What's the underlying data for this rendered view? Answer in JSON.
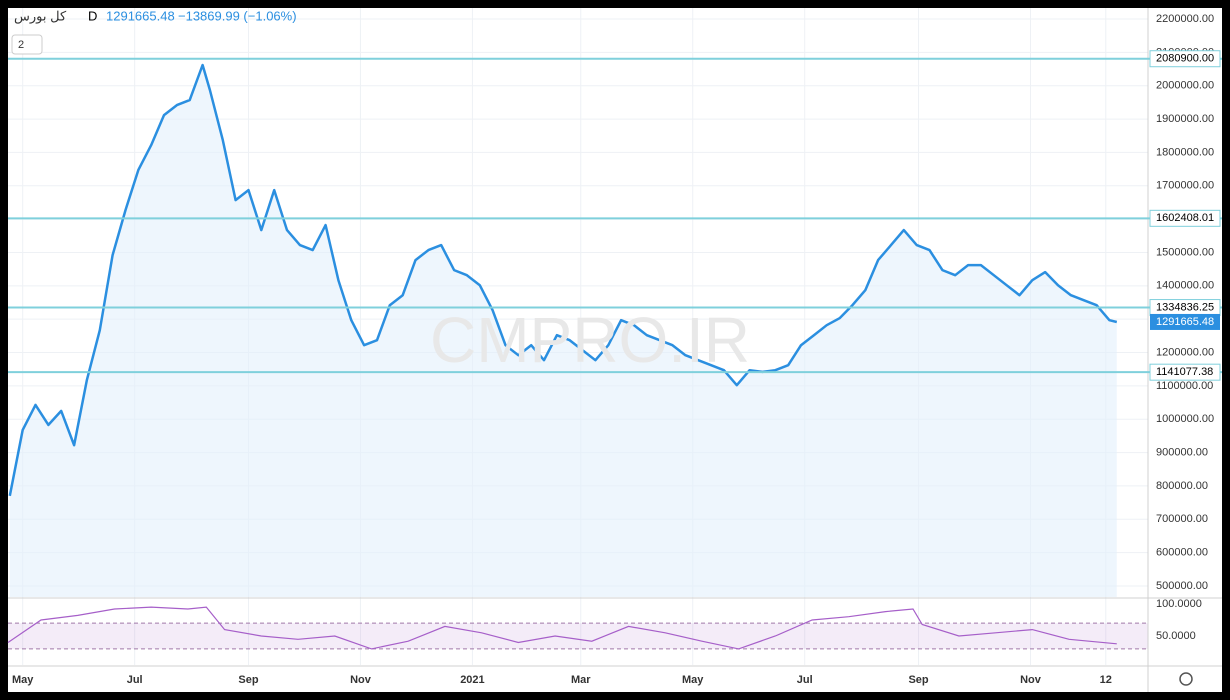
{
  "header": {
    "symbol": "کل بورس",
    "interval": "D",
    "change": "−13869.99 (−1.06%)",
    "layers": "2",
    "watermark": "CMPRO.IR"
  },
  "chart_data": {
    "type": "line",
    "color": "#2b8fe0",
    "xlim": [
      -8,
      613
    ],
    "xticks": [
      {
        "value": 0,
        "label": "May"
      },
      {
        "value": 61,
        "label": "Jul"
      },
      {
        "value": 123,
        "label": "Sep"
      },
      {
        "value": 184,
        "label": "Nov"
      },
      {
        "value": 245,
        "label": "2021"
      },
      {
        "value": 304,
        "label": "Mar"
      },
      {
        "value": 365,
        "label": "May"
      },
      {
        "value": 426,
        "label": "Jul"
      },
      {
        "value": 488,
        "label": "Sep"
      },
      {
        "value": 549,
        "label": "Nov"
      },
      {
        "value": 590,
        "label": "12"
      }
    ],
    "ylim": [
      467000,
      2233000
    ],
    "yticks": [
      {
        "value": 500000,
        "label": "500000.00"
      },
      {
        "value": 600000,
        "label": "600000.00"
      },
      {
        "value": 700000,
        "label": "700000.00"
      },
      {
        "value": 800000,
        "label": "800000.00"
      },
      {
        "value": 900000,
        "label": "900000.00"
      },
      {
        "value": 1000000,
        "label": "1000000.00"
      },
      {
        "value": 1100000,
        "label": "1100000.00"
      },
      {
        "value": 1200000,
        "label": "1200000.00"
      },
      {
        "value": 1300000,
        "label": "1300000.00"
      },
      {
        "value": 1400000,
        "label": "1400000.00"
      },
      {
        "value": 1500000,
        "label": "1500000.00"
      },
      {
        "value": 1600000,
        "label": "1600000.00"
      },
      {
        "value": 1700000,
        "label": "1700000.00"
      },
      {
        "value": 1800000,
        "label": "1800000.00"
      },
      {
        "value": 1900000,
        "label": "1900000.00"
      },
      {
        "value": 2000000,
        "label": "2000000.00"
      },
      {
        "value": 2100000,
        "label": "2100000.00"
      },
      {
        "value": 2200000,
        "label": "2200000.00"
      }
    ],
    "grid": true,
    "x": [
      -7,
      0,
      7,
      14,
      21,
      28,
      35,
      42,
      49,
      56,
      63,
      70,
      77,
      84,
      91,
      98,
      102,
      109,
      116,
      123,
      130,
      137,
      144,
      151,
      158,
      165,
      172,
      179,
      186,
      193,
      200,
      207,
      214,
      221,
      228,
      235,
      242,
      249,
      256,
      263,
      270,
      277,
      284,
      291,
      298,
      305,
      312,
      319,
      326,
      333,
      340,
      347,
      354,
      361,
      368,
      375,
      382,
      389,
      396,
      403,
      410,
      417,
      424,
      431,
      438,
      445,
      452,
      459,
      466,
      473,
      480,
      487,
      494,
      501,
      508,
      515,
      522,
      529,
      536,
      543,
      550,
      557,
      564,
      571,
      578,
      585,
      592,
      596
    ],
    "values": [
      770000,
      968000,
      1043000,
      983000,
      1025000,
      922000,
      1118000,
      1267000,
      1492000,
      1627000,
      1747000,
      1822000,
      1912000,
      1942000,
      1957000,
      2062000,
      1987000,
      1837000,
      1657000,
      1687000,
      1567000,
      1687000,
      1567000,
      1522000,
      1507000,
      1582000,
      1417000,
      1297000,
      1222000,
      1237000,
      1342000,
      1372000,
      1477000,
      1507000,
      1522000,
      1447000,
      1432000,
      1402000,
      1327000,
      1222000,
      1192000,
      1222000,
      1177000,
      1252000,
      1237000,
      1207000,
      1177000,
      1222000,
      1297000,
      1282000,
      1252000,
      1237000,
      1222000,
      1192000,
      1177000,
      1162000,
      1147000,
      1102000,
      1147000,
      1142000,
      1147000,
      1162000,
      1222000,
      1252000,
      1282000,
      1303000,
      1342000,
      1387000,
      1477000,
      1522000,
      1567000,
      1522000,
      1507000,
      1447000,
      1432000,
      1462000,
      1462000,
      1432000,
      1402000,
      1372000,
      1417000,
      1441000,
      1402000,
      1372000,
      1357000,
      1342000,
      1297000,
      1291665.48
    ],
    "last_price": {
      "value": 1291665.48,
      "label": "1291665.48"
    },
    "levels": [
      {
        "value": 2080900,
        "label": "2080900.00"
      },
      {
        "value": 1602408.01,
        "label": "1602408.01"
      },
      {
        "value": 1334836.25,
        "label": "1334836.25"
      },
      {
        "value": 1141077.38,
        "label": "1141077.38"
      }
    ],
    "level_color": "#7fd0dc",
    "rsi": {
      "color": "#a65fc9",
      "ylim": [
        5,
        106
      ],
      "yticks": [
        {
          "value": 100,
          "label": "100.0000"
        },
        {
          "value": 50,
          "label": "50.0000"
        }
      ],
      "bands": [
        70,
        30
      ],
      "x": [
        -8,
        10,
        30,
        50,
        70,
        90,
        100,
        110,
        130,
        150,
        170,
        190,
        210,
        230,
        250,
        270,
        290,
        310,
        330,
        350,
        370,
        390,
        410,
        430,
        450,
        470,
        485,
        490,
        510,
        530,
        550,
        570,
        596
      ],
      "values": [
        40,
        75,
        82,
        92,
        95,
        92,
        95,
        60,
        50,
        45,
        50,
        30,
        42,
        65,
        55,
        40,
        50,
        42,
        65,
        55,
        42,
        30,
        50,
        75,
        80,
        88,
        92,
        68,
        50,
        55,
        60,
        45,
        38
      ]
    }
  }
}
